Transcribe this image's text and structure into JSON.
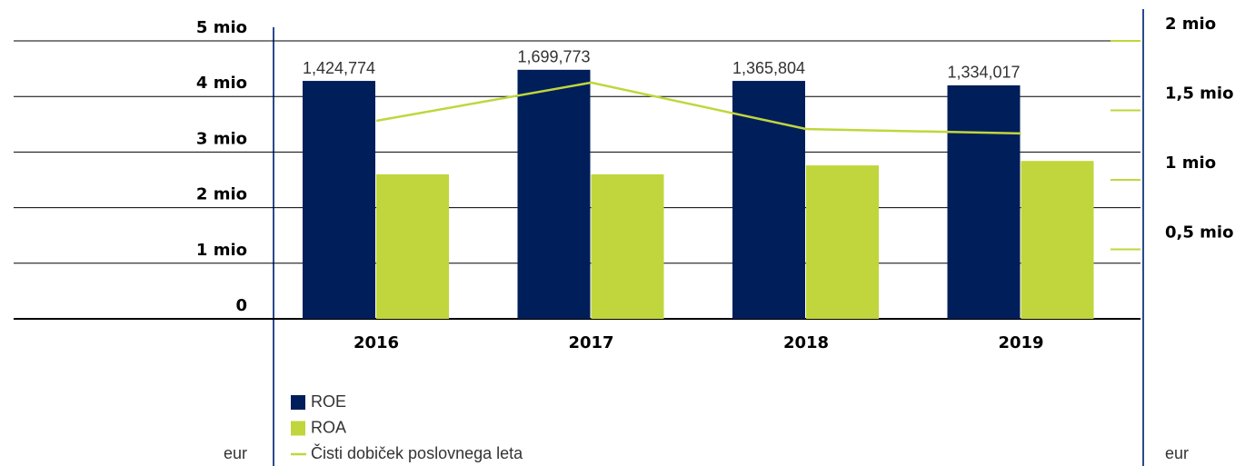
{
  "chart_data": {
    "type": "bar",
    "categories": [
      "2016",
      "2017",
      "2018",
      "2019"
    ],
    "series": [
      {
        "name": "ROE",
        "color": "#001e5a",
        "values": [
          4280000,
          4480000,
          4280000,
          4200000
        ]
      },
      {
        "name": "ROA",
        "color": "#c0d63c",
        "values": [
          2600000,
          2600000,
          2760000,
          2840000
        ]
      },
      {
        "name": "Čisti dobiček poslovnega leta",
        "color": "#c0d63c",
        "type": "line",
        "axis": "y2",
        "values": [
          1424774,
          1699773,
          1365804,
          1334017
        ],
        "value_labels": [
          "1,424,774",
          "1,699,773",
          "1,365,804",
          "1,334,017"
        ]
      }
    ],
    "ylim": [
      0,
      5000000
    ],
    "yticks": [
      {
        "value": 0,
        "label": "0"
      },
      {
        "value": 1000000,
        "label": "1 mio"
      },
      {
        "value": 2000000,
        "label": "2 mio"
      },
      {
        "value": 3000000,
        "label": "3 mio"
      },
      {
        "value": 4000000,
        "label": "4 mio"
      },
      {
        "value": 5000000,
        "label": "5 mio"
      }
    ],
    "y2lim": [
      0,
      2000000
    ],
    "y2ticks": [
      {
        "value": 500000,
        "label": "0,5 mio"
      },
      {
        "value": 1000000,
        "label": "1 mio"
      },
      {
        "value": 1500000,
        "label": "1,5 mio"
      },
      {
        "value": 2000000,
        "label": "2 mio"
      }
    ],
    "ylabel": "eur",
    "y2label": "eur",
    "grid": true
  }
}
